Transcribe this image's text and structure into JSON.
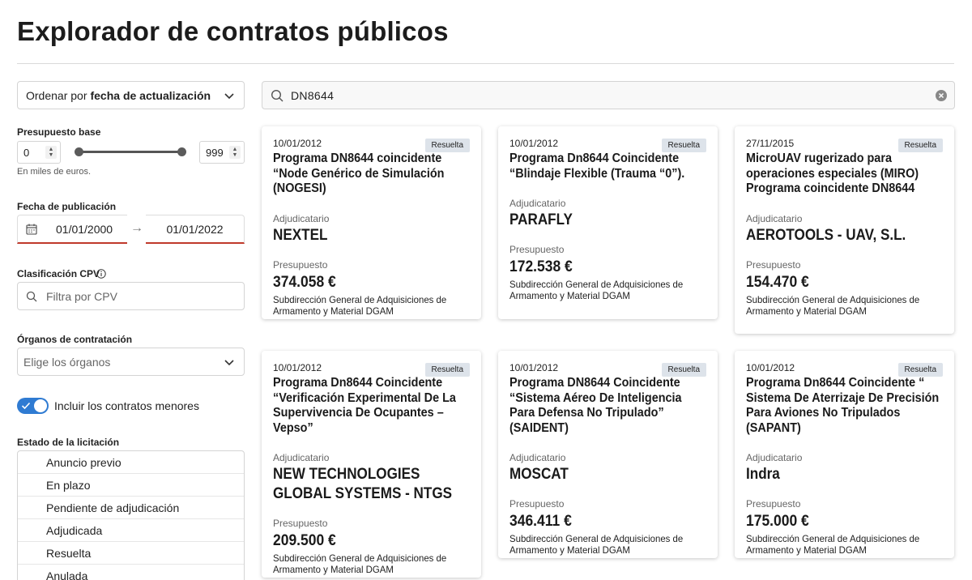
{
  "page_title": "Explorador de contratos públicos",
  "sidebar": {
    "sort": {
      "prefix": "Ordenar por",
      "value": "fecha de actualización"
    },
    "budget": {
      "label": "Presupuesto base",
      "min": "0",
      "max": "999",
      "hint": "En miles de euros.",
      "range_fraction": [
        0,
        1
      ]
    },
    "publication_date": {
      "label": "Fecha de publicación",
      "from": "01/01/2000",
      "arrow": "→",
      "to": "01/01/2022"
    },
    "cpv": {
      "label": "Clasificación CPV",
      "placeholder": "Filtra por CPV"
    },
    "organs": {
      "label": "Órganos de contratación",
      "placeholder": "Elige los órganos"
    },
    "minor_contracts": {
      "label": "Incluir los contratos menores",
      "checked": true
    },
    "status": {
      "label": "Estado de la licitación",
      "items": [
        "Anuncio previo",
        "En plazo",
        "Pendiente de adjudicación",
        "Adjudicada",
        "Resuelta",
        "Anulada"
      ]
    }
  },
  "search": {
    "value": "DN8644"
  },
  "cards": [
    {
      "date": "10/01/2012",
      "badge": "Resuelta",
      "title": "Programa DN8644 coincidente “Node Genérico de Simulación (NOGESI)",
      "winner_label": "Adjudicatario",
      "winner": "NEXTEL",
      "budget_label": "Presupuesto",
      "amount": "374.058 €",
      "agency": "Subdirección General de Adquisiciones de Armamento y Material DGAM"
    },
    {
      "date": "10/01/2012",
      "badge": "Resuelta",
      "title": "Programa Dn8644 Coincidente “Blindaje Flexible (Trauma “0”).",
      "winner_label": "Adjudicatario",
      "winner": "PARAFLY",
      "budget_label": "Presupuesto",
      "amount": "172.538 €",
      "agency": "Subdirección General de Adquisiciones de Armamento y Material DGAM"
    },
    {
      "date": "27/11/2015",
      "badge": "Resuelta",
      "title": "MicroUAV rugerizado para operaciones especiales (MIRO) Programa coincidente DN8644",
      "winner_label": "Adjudicatario",
      "winner": "AEROTOOLS - UAV, S.L.",
      "budget_label": "Presupuesto",
      "amount": "154.470 €",
      "agency": "Subdirección General de Adquisiciones de Armamento y Material DGAM"
    },
    {
      "date": "10/01/2012",
      "badge": "Resuelta",
      "title": "Programa Dn8644 Coincidente “Verificación Experimental De La Supervivencia De Ocupantes – Vepso”",
      "winner_label": "Adjudicatario",
      "winner": "NEW TECHNOLOGIES GLOBAL SYSTEMS - NTGS",
      "budget_label": "Presupuesto",
      "amount": "209.500 €",
      "agency": "Subdirección General de Adquisiciones de Armamento y Material DGAM"
    },
    {
      "date": "10/01/2012",
      "badge": "Resuelta",
      "title": "Programa DN8644 Coincidente “Sistema Aéreo De Inteligencia Para Defensa No Tripulado” (SAIDENT)",
      "winner_label": "Adjudicatario",
      "winner": "MOSCAT",
      "budget_label": "Presupuesto",
      "amount": "346.411 €",
      "agency": "Subdirección General de Adquisiciones de Armamento y Material DGAM"
    },
    {
      "date": "10/01/2012",
      "badge": "Resuelta",
      "title": "Programa Dn8644 Coincidente “ Sistema De Aterrizaje De Precisión Para Aviones No Tripulados (SAPANT)",
      "winner_label": "Adjudicatario",
      "winner": "Indra",
      "budget_label": "Presupuesto",
      "amount": "175.000 €",
      "agency": "Subdirección General de Adquisiciones de Armamento y Material DGAM"
    }
  ],
  "colors": {
    "accent": "#2f7bd2",
    "date_underline": "#c0392b",
    "badge_bg": "#dde3ea"
  }
}
